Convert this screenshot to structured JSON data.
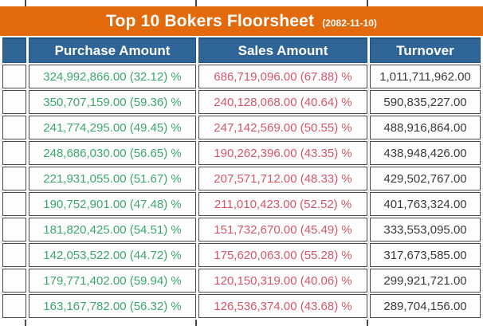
{
  "banner": {
    "title": "Top 10 Bokers Floorsheet",
    "date": "(2082-11-10)"
  },
  "table": {
    "headers": {
      "broker": "",
      "purchase": "Purchase Amount",
      "sales": "Sales Amount",
      "turnover": "Turnover"
    },
    "rows": [
      {
        "broker": "",
        "purchase": "324,992,866.00 (32.12) %",
        "sales": "686,719,096.00 (67.88) %",
        "turnover": "1,011,711,962.00"
      },
      {
        "broker": "",
        "purchase": "350,707,159.00 (59.36) %",
        "sales": "240,128,068.00 (40.64) %",
        "turnover": "590,835,227.00"
      },
      {
        "broker": "",
        "purchase": "241,774,295.00 (49.45) %",
        "sales": "247,142,569.00 (50.55) %",
        "turnover": "488,916,864.00"
      },
      {
        "broker": "",
        "purchase": "248,686,030.00 (56.65) %",
        "sales": "190,262,396.00 (43.35) %",
        "turnover": "438,948,426.00"
      },
      {
        "broker": "",
        "purchase": "221,931,055.00 (51.67) %",
        "sales": "207,571,712.00 (48.33) %",
        "turnover": "429,502,767.00"
      },
      {
        "broker": "",
        "purchase": "190,752,901.00 (47.48) %",
        "sales": "211,010,423.00 (52.52) %",
        "turnover": "401,763,324.00"
      },
      {
        "broker": "",
        "purchase": "181,820,425.00 (54.51) %",
        "sales": "151,732,670.00 (45.49) %",
        "turnover": "333,553,095.00"
      },
      {
        "broker": "",
        "purchase": "142,053,522.00 (44.72) %",
        "sales": "175,620,063.00 (55.28) %",
        "turnover": "317,673,585.00"
      },
      {
        "broker": "",
        "purchase": "179,771,402.00 (59.94) %",
        "sales": "120,150,319.00 (40.06) %",
        "turnover": "299,921,721.00"
      },
      {
        "broker": "",
        "purchase": "163,167,782.00 (56.32) %",
        "sales": "126,536,374.00 (43.68) %",
        "turnover": "289,704,156.00"
      }
    ]
  },
  "colors": {
    "banner_orange": "#E26A0C",
    "header_blue": "#2F6496",
    "header_navy_border": "#1F4E79",
    "purchase_green": "#3BA76C",
    "sales_red": "#D4566A",
    "turnover_gray": "#3A3A3A",
    "grid_border": "#4A4A4A",
    "background": "#FFFFFF"
  }
}
